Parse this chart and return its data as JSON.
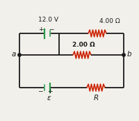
{
  "bg_color": "#f2f0eb",
  "line_color": "#1a1a1a",
  "resistor_color": "#cc2200",
  "battery_color": "#2a9a4a",
  "label_color": "#1a1a1a",
  "top_battery_label": "12.0 V",
  "top_resistor_label": "4.00 Ω",
  "mid_resistor_label": "2.00 Ω",
  "bot_resistor_label": "R",
  "bot_battery_label": "ε",
  "node_a_label": "a",
  "node_b_label": "b",
  "top_bat_plus": "+",
  "top_bat_minus": "−",
  "bot_bat_minus": "−",
  "bot_bat_plus": "+"
}
